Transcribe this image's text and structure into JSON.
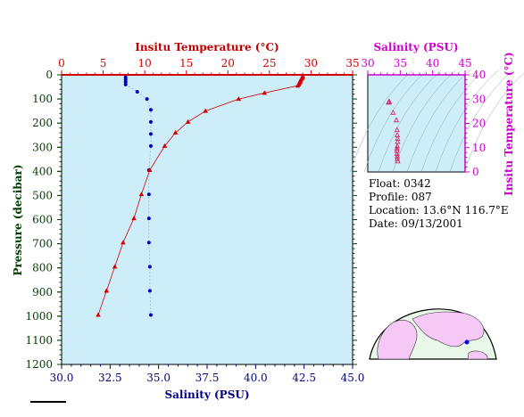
{
  "info": {
    "float_line": "Float:  0342",
    "profile_line": "Profile:  087",
    "location_line": "Location:  13.6°N  116.7°E",
    "date_line": "Date:  09/13/2001"
  },
  "colors": {
    "temperature": "#d40000",
    "salinity": "#0000c8",
    "inset_axis": "#cc00cc",
    "pressure_axis": "#004000",
    "plot_bg": "#cdeef9"
  },
  "chart_data": [
    {
      "type": "line",
      "title": "",
      "top_xlabel": "Insitu Temperature (°C)",
      "bottom_xlabel": "Salinity (PSU)",
      "ylabel": "Pressure (decibar)",
      "temp_ticks": [
        "0",
        "5",
        "10",
        "15",
        "20",
        "25",
        "30",
        "35"
      ],
      "sal_ticks": [
        "30.0",
        "32.5",
        "35.0",
        "37.5",
        "40.0",
        "42.5",
        "45.0"
      ],
      "pressure_ticks": [
        "0",
        "100",
        "200",
        "300",
        "400",
        "500",
        "600",
        "700",
        "800",
        "900",
        "1000",
        "1100",
        "1200"
      ],
      "temp_xlim": [
        0,
        35
      ],
      "sal_xlim": [
        30,
        45
      ],
      "ylim": [
        1200,
        0
      ],
      "grid": false,
      "series": [
        {
          "name": "Temperature",
          "axis": "top",
          "marker": "triangle",
          "points": [
            [
              29.0,
              5
            ],
            [
              29.0,
              10
            ],
            [
              28.9,
              15
            ],
            [
              28.8,
              20
            ],
            [
              28.7,
              25
            ],
            [
              28.7,
              30
            ],
            [
              28.6,
              35
            ],
            [
              28.5,
              40
            ],
            [
              28.4,
              45
            ],
            [
              24.4,
              75
            ],
            [
              21.3,
              100
            ],
            [
              17.3,
              150
            ],
            [
              15.2,
              195
            ],
            [
              13.7,
              240
            ],
            [
              12.4,
              295
            ],
            [
              10.6,
              395
            ],
            [
              9.6,
              495
            ],
            [
              8.7,
              595
            ],
            [
              7.4,
              695
            ],
            [
              6.4,
              795
            ],
            [
              5.4,
              895
            ],
            [
              4.4,
              995
            ]
          ]
        },
        {
          "name": "Salinity",
          "axis": "bottom",
          "marker": "dot",
          "points": [
            [
              33.3,
              10
            ],
            [
              33.3,
              20
            ],
            [
              33.3,
              30
            ],
            [
              33.3,
              40
            ],
            [
              33.9,
              70
            ],
            [
              34.4,
              100
            ],
            [
              34.6,
              145
            ],
            [
              34.6,
              195
            ],
            [
              34.6,
              245
            ],
            [
              34.6,
              295
            ],
            [
              34.5,
              395
            ],
            [
              34.5,
              495
            ],
            [
              34.5,
              595
            ],
            [
              34.5,
              695
            ],
            [
              34.55,
              795
            ],
            [
              34.55,
              895
            ],
            [
              34.6,
              995
            ]
          ]
        }
      ]
    },
    {
      "type": "scatter",
      "title": "",
      "xlabel": "Salinity (PSU)",
      "ylabel": "Insitu Temperature (°C)",
      "x_ticks": [
        "30",
        "35",
        "40",
        "45"
      ],
      "y_ticks": [
        "0",
        "10",
        "20",
        "30",
        "40"
      ],
      "xlim": [
        30,
        45
      ],
      "ylim": [
        0,
        40
      ],
      "points": [
        [
          33.3,
          29.0
        ],
        [
          33.3,
          28.8
        ],
        [
          33.2,
          28.6
        ],
        [
          33.9,
          24.4
        ],
        [
          34.4,
          21.3
        ],
        [
          34.5,
          17.3
        ],
        [
          34.55,
          15.2
        ],
        [
          34.6,
          13.7
        ],
        [
          34.6,
          12.4
        ],
        [
          34.55,
          10.6
        ],
        [
          34.5,
          9.6
        ],
        [
          34.5,
          8.7
        ],
        [
          34.5,
          7.4
        ],
        [
          34.55,
          6.4
        ],
        [
          34.55,
          5.4
        ],
        [
          34.6,
          4.4
        ]
      ]
    }
  ]
}
